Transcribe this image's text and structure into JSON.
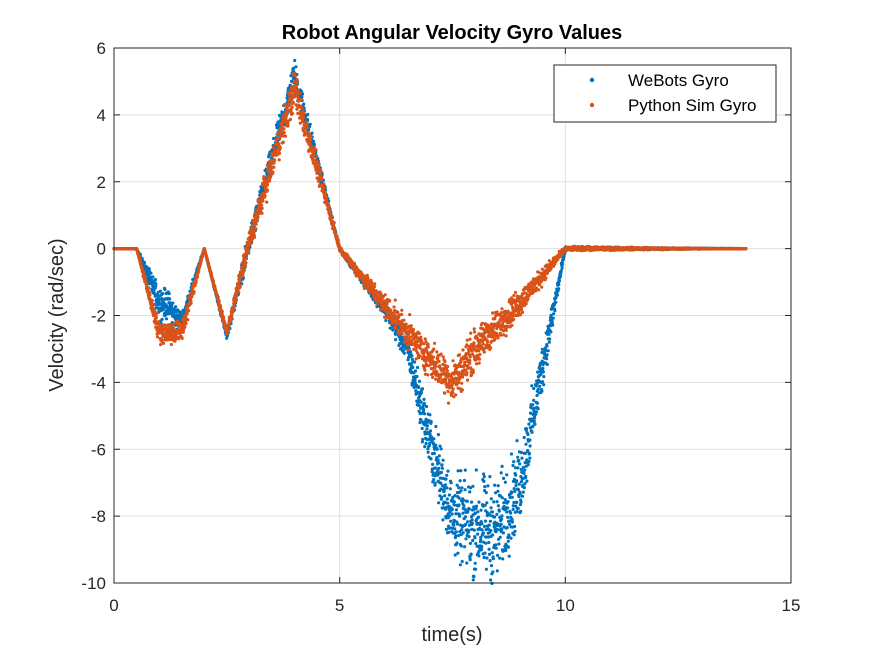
{
  "chart_data": {
    "type": "scatter",
    "title": "Robot Angular Velocity Gyro Values",
    "xlabel": "time(s)",
    "ylabel": "Velocity (rad/sec)",
    "xlim": [
      0,
      15
    ],
    "ylim": [
      -10,
      6
    ],
    "xticks": [
      0,
      5,
      10,
      15
    ],
    "yticks": [
      -10,
      -8,
      -6,
      -4,
      -2,
      0,
      2,
      4,
      6
    ],
    "grid": true,
    "legend_position": "top-right",
    "series": [
      {
        "name": "WeBots Gyro",
        "color": "#0072BD",
        "points": [
          [
            0,
            0
          ],
          [
            0.5,
            0
          ],
          [
            1.0,
            -1.6
          ],
          [
            1.2,
            -1.7
          ],
          [
            1.4,
            -2.1
          ],
          [
            1.5,
            -2.2
          ],
          [
            2.0,
            0
          ],
          [
            2.5,
            -2.6
          ],
          [
            3.0,
            0.2
          ],
          [
            4.0,
            5.2
          ],
          [
            5.0,
            0
          ],
          [
            6.0,
            -1.8
          ],
          [
            6.5,
            -3.0
          ],
          [
            7.0,
            -5.8
          ],
          [
            7.5,
            -8.0
          ],
          [
            8.0,
            -8.3
          ],
          [
            8.5,
            -8.4
          ],
          [
            9.0,
            -7.0
          ],
          [
            9.5,
            -3.5
          ],
          [
            10.0,
            0
          ],
          [
            14.0,
            0
          ]
        ],
        "noise_band": [
          [
            0,
            0
          ],
          [
            0.5,
            0
          ],
          [
            1.0,
            0.4
          ],
          [
            1.5,
            0.3
          ],
          [
            2.0,
            0
          ],
          [
            2.5,
            0.1
          ],
          [
            3.0,
            0.3
          ],
          [
            4.0,
            0.4
          ],
          [
            5.0,
            0.05
          ],
          [
            6.0,
            0.2
          ],
          [
            6.5,
            0.4
          ],
          [
            7.0,
            0.8
          ],
          [
            7.5,
            1.0
          ],
          [
            8.0,
            1.3
          ],
          [
            8.5,
            1.3
          ],
          [
            9.0,
            1.0
          ],
          [
            9.5,
            0.6
          ],
          [
            10.0,
            0.05
          ],
          [
            14.0,
            0
          ]
        ]
      },
      {
        "name": "Python Sim Gyro",
        "color": "#D95319",
        "points": [
          [
            0,
            0
          ],
          [
            0.5,
            0
          ],
          [
            1.0,
            -2.5
          ],
          [
            1.5,
            -2.5
          ],
          [
            2.0,
            0
          ],
          [
            2.5,
            -2.5
          ],
          [
            3.0,
            0.2
          ],
          [
            4.0,
            4.8
          ],
          [
            5.0,
            0
          ],
          [
            6.0,
            -1.7
          ],
          [
            7.0,
            -3.3
          ],
          [
            7.5,
            -4.0
          ],
          [
            8.0,
            -3.0
          ],
          [
            9.0,
            -1.6
          ],
          [
            10.0,
            0
          ],
          [
            14.0,
            0
          ]
        ],
        "noise_band": [
          [
            0,
            0
          ],
          [
            0.5,
            0
          ],
          [
            1.0,
            0.3
          ],
          [
            1.5,
            0.3
          ],
          [
            2.0,
            0
          ],
          [
            2.5,
            0.1
          ],
          [
            3.0,
            0.3
          ],
          [
            4.0,
            0.5
          ],
          [
            5.0,
            0.05
          ],
          [
            6.0,
            0.3
          ],
          [
            7.0,
            0.45
          ],
          [
            7.5,
            0.55
          ],
          [
            8.0,
            0.5
          ],
          [
            9.0,
            0.35
          ],
          [
            10.0,
            0.05
          ],
          [
            14.0,
            0
          ]
        ]
      }
    ]
  }
}
